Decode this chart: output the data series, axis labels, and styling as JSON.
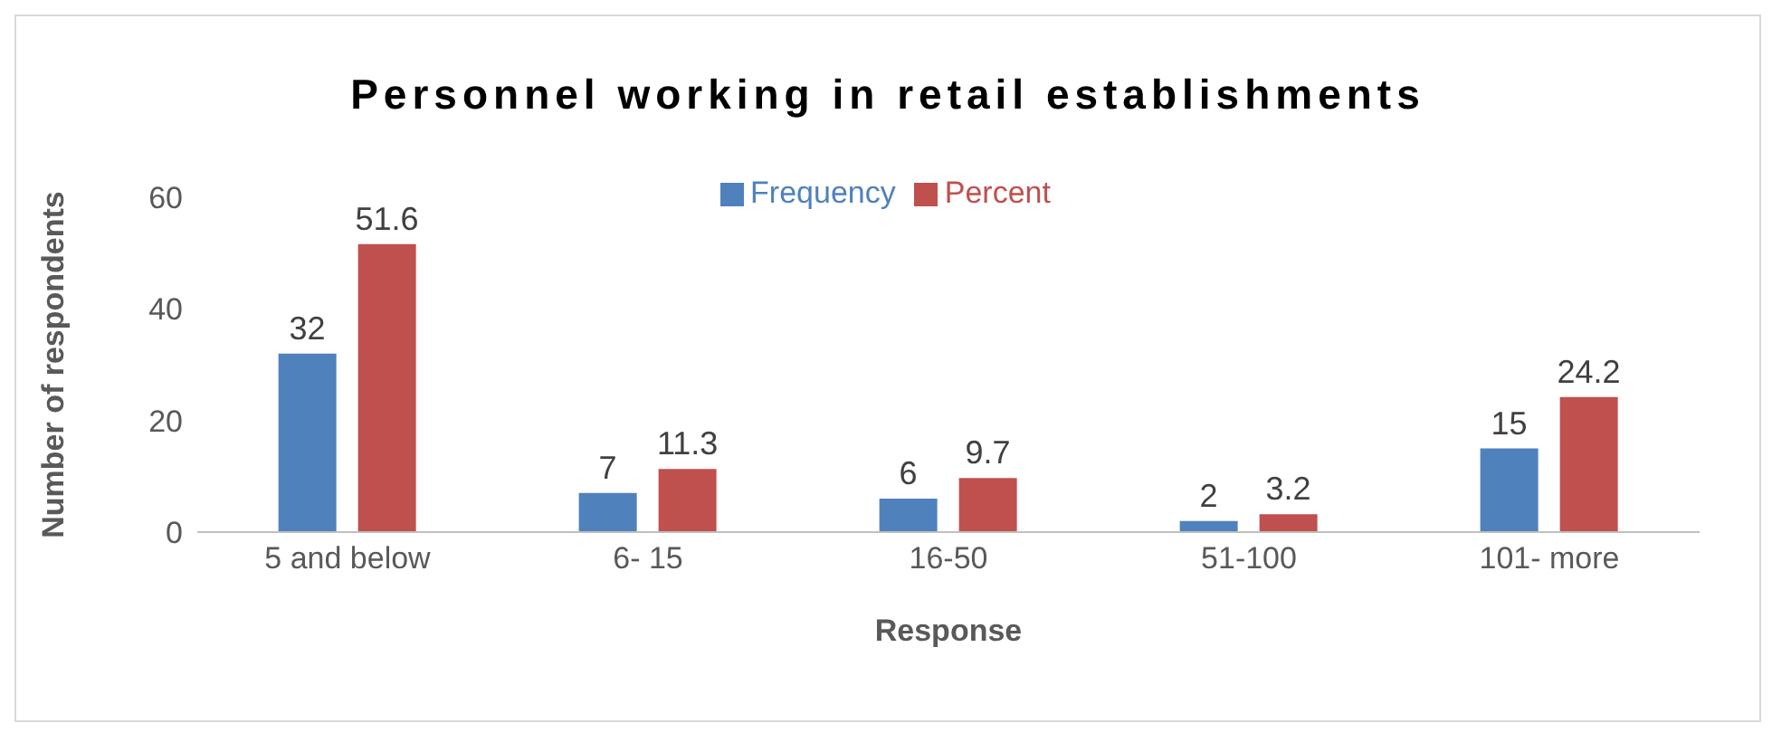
{
  "chart_data": {
    "type": "bar",
    "title": "Personnel working  in retail establishments",
    "xlabel": "Response",
    "ylabel": "Number of respondents",
    "categories": [
      "5 and below",
      "6- 15",
      "16-50",
      "51-100",
      "101- more"
    ],
    "series": [
      {
        "name": "Frequency",
        "color": "#4f81bd",
        "values": [
          32,
          7,
          6,
          2,
          15
        ]
      },
      {
        "name": "Percent",
        "color": "#c0504d",
        "values": [
          51.6,
          11.3,
          9.7,
          3.2,
          24.2
        ]
      }
    ],
    "ylim": [
      0,
      60
    ],
    "yticks": [
      0,
      20,
      40,
      60
    ],
    "grid": false,
    "legend": "top",
    "data_labels": true
  }
}
